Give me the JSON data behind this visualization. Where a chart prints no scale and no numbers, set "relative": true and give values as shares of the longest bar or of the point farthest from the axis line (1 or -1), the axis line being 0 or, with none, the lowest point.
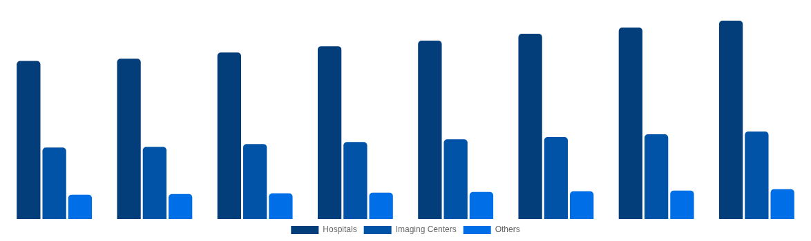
{
  "chart_data": {
    "type": "bar",
    "relative": true,
    "categories": [
      null,
      null,
      null,
      null,
      null,
      null,
      null,
      null
    ],
    "legend": "bottom",
    "series": [
      {
        "name": "Hospitals",
        "color": "#033d7a",
        "values": [
          0.797,
          0.808,
          0.839,
          0.871,
          0.899,
          0.934,
          0.965,
          1
        ]
      },
      {
        "name": "Imaging Centers",
        "color": "#0053a6",
        "values": [
          0.36,
          0.364,
          0.378,
          0.388,
          0.402,
          0.413,
          0.427,
          0.441
        ]
      },
      {
        "name": "Others",
        "color": "#006ee6",
        "values": [
          0.122,
          0.126,
          0.129,
          0.133,
          0.136,
          0.14,
          0.143,
          0.15
        ]
      }
    ]
  }
}
